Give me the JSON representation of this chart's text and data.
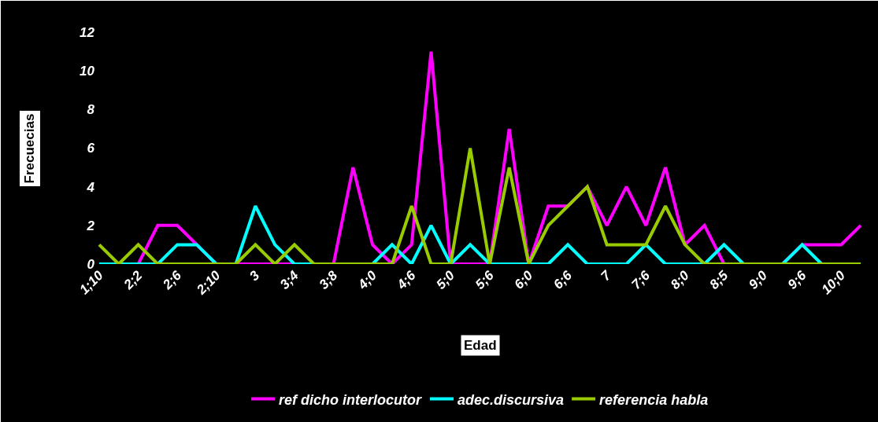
{
  "chart_data": {
    "type": "line",
    "xlabel": "Edad",
    "ylabel": "Frecuecias",
    "categories": [
      "1;10",
      null,
      "2;2",
      null,
      "2;6",
      null,
      "2;10",
      null,
      "3",
      null,
      "3;4",
      null,
      "3;8",
      null,
      "4;0",
      null,
      "4;6",
      null,
      "5;0",
      null,
      "5;6",
      null,
      "6;0",
      null,
      "6;6",
      null,
      "7",
      null,
      "7;6",
      null,
      "8;0",
      null,
      "8;5",
      null,
      "9;0",
      null,
      "9;6",
      null,
      "10;0",
      null
    ],
    "series": [
      {
        "name": "ref dicho interlocutor",
        "color": "#ff00ff",
        "values": [
          0,
          0,
          0,
          2,
          2,
          1,
          0,
          0,
          0,
          0,
          0,
          0,
          0,
          5,
          1,
          0,
          1,
          11,
          0,
          0,
          0,
          7,
          0,
          3,
          3,
          4,
          2,
          4,
          2,
          5,
          1,
          2,
          0,
          0,
          0,
          0,
          1,
          1,
          1,
          2
        ]
      },
      {
        "name": "adec.discursiva",
        "color": "#00ffff",
        "values": [
          0,
          0,
          0,
          0,
          1,
          1,
          0,
          0,
          3,
          1,
          0,
          0,
          0,
          0,
          0,
          1,
          0,
          2,
          0,
          1,
          0,
          0,
          0,
          0,
          1,
          0,
          0,
          0,
          1,
          0,
          0,
          0,
          1,
          0,
          0,
          0,
          1,
          0,
          0,
          0
        ]
      },
      {
        "name": "referencia habla",
        "color": "#99cc00",
        "values": [
          1,
          0,
          1,
          0,
          0,
          0,
          0,
          0,
          1,
          0,
          1,
          0,
          0,
          0,
          0,
          0,
          3,
          0,
          0,
          6,
          0,
          5,
          0,
          2,
          3,
          4,
          1,
          1,
          1,
          3,
          1,
          0,
          0,
          0,
          0,
          0,
          0,
          0,
          0,
          0
        ]
      }
    ],
    "ylim": [
      0,
      12
    ],
    "yticks": [
      0,
      2,
      4,
      6,
      8,
      10,
      12
    ],
    "grid": false,
    "legend": "bottom",
    "marker": "none",
    "line_style": "solid"
  }
}
